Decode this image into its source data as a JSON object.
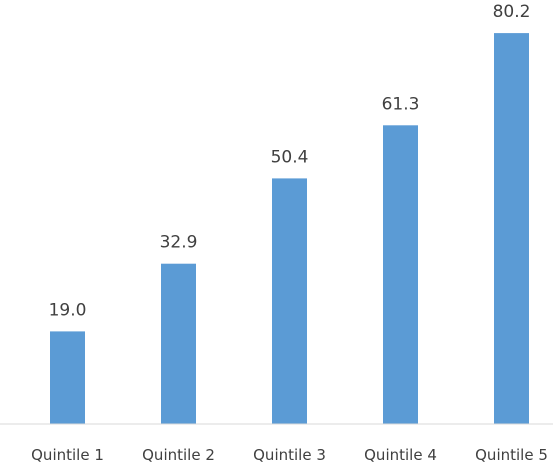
{
  "chart_data": {
    "type": "bar",
    "categories": [
      "Quintile 1",
      "Quintile 2",
      "Quintile 3",
      "Quintile 4",
      "Quintile 5"
    ],
    "values": [
      19.0,
      32.9,
      50.4,
      61.3,
      80.2
    ],
    "data_labels": [
      "19.0",
      "32.9",
      "50.4",
      "61.3",
      "80.2"
    ],
    "ylim": [
      0,
      87
    ],
    "grid": false,
    "legend": "none",
    "bar_color": "#5b9bd5",
    "axis_color": "#d9d9d9",
    "text_color": "#404040"
  }
}
